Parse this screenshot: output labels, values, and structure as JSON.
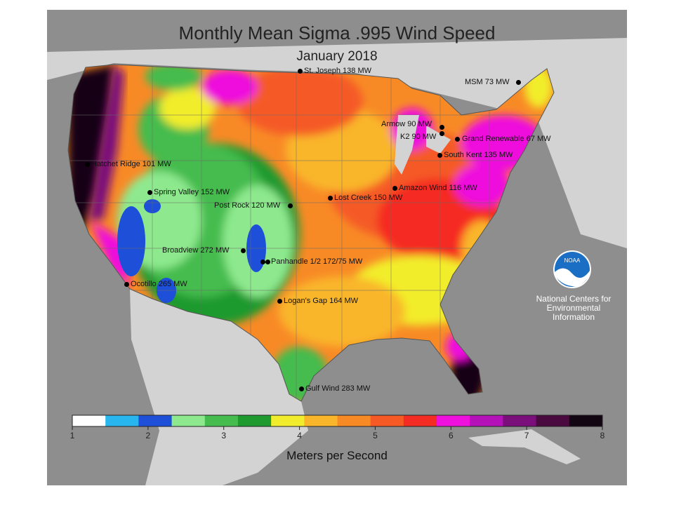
{
  "map": {
    "title": "Monthly Mean Sigma .995 Wind Speed",
    "subtitle": "January 2018",
    "legend_title": "Meters per Second",
    "legend_ticks": [
      "1",
      "2",
      "3",
      "4",
      "5",
      "6",
      "7",
      "8"
    ],
    "legend_colors": [
      "#ffffff",
      "#29b6ee",
      "#1d4fd8",
      "#8ee98e",
      "#45bc4d",
      "#1e9a2f",
      "#f2ed2c",
      "#f9b62b",
      "#f88a26",
      "#f55a25",
      "#f52c23",
      "#ee11dd",
      "#b411b8",
      "#7a0f7c",
      "#4a0a40",
      "#120612"
    ],
    "organization": [
      "National Centers for",
      "Environmental",
      "Information"
    ],
    "logo_text": "NOAA"
  },
  "wind_farms": [
    {
      "label": "St. Joseph 138 MW"
    },
    {
      "label": "MSM 73 MW"
    },
    {
      "label": "Armow 90 MW"
    },
    {
      "label": "K2 90 MW"
    },
    {
      "label": "Grand Renewable 67 MW"
    },
    {
      "label": "South Kent 135 MW"
    },
    {
      "label": "Hatchet Ridge 101 MW"
    },
    {
      "label": "Amazon Wind 116 MW"
    },
    {
      "label": "Spring Valley 152 MW"
    },
    {
      "label": "Lost Creek 150 MW"
    },
    {
      "label": "Post Rock 120 MW"
    },
    {
      "label": "Broadview 272 MW"
    },
    {
      "label": "Panhandle 1/2 172/75 MW"
    },
    {
      "label": "Ocotillo 265 MW"
    },
    {
      "label": "Logan's Gap 164 MW"
    },
    {
      "label": "Gulf Wind 283 MW"
    }
  ]
}
